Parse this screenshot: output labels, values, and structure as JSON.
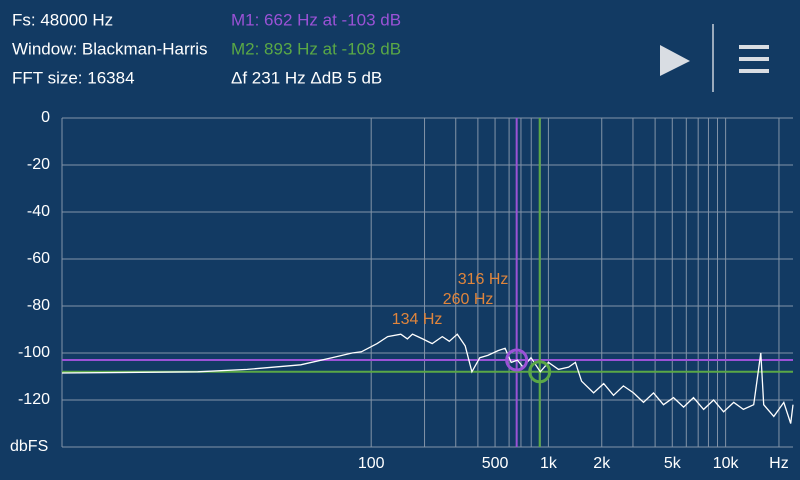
{
  "header": {
    "fs": "Fs: 48000 Hz",
    "window": "Window: Blackman-Harris",
    "fft_size": "FFT size: 16384",
    "m1": "M1: 662 Hz at -103 dB",
    "m2": "M2: 893 Hz at -108 dB",
    "delta": "Δf 231 Hz ΔdB 5 dB"
  },
  "chart_data": {
    "type": "line",
    "log_x": true,
    "ylabel": "dbFS",
    "line_color": "#ffffff",
    "xlim": [
      1.8,
      24000
    ],
    "ylim": [
      -140,
      0
    ],
    "yticks": [
      0,
      -20,
      -40,
      -60,
      -80,
      -100,
      -120
    ],
    "xticks": [
      100,
      500,
      {
        "value": 1000,
        "label": "1k"
      },
      {
        "value": 2000,
        "label": "2k"
      },
      {
        "value": 5000,
        "label": "5k"
      },
      {
        "value": 10000,
        "label": "10k"
      },
      {
        "value": 20000,
        "label": "Hz"
      }
    ],
    "xgrid": [
      100,
      200,
      300,
      400,
      500,
      600,
      700,
      800,
      900,
      1000,
      2000,
      3000,
      4000,
      5000,
      6000,
      7000,
      8000,
      9000,
      10000,
      20000
    ],
    "x": [
      1.8,
      10.5,
      20,
      40,
      60,
      78,
      88,
      108,
      124,
      147,
      160,
      171,
      195,
      221,
      252,
      276,
      306,
      339,
      370,
      410,
      455,
      520,
      570,
      617,
      668,
      720,
      798,
      900,
      1000,
      1140,
      1300,
      1420,
      1540,
      1800,
      2050,
      2330,
      2650,
      3020,
      3440,
      3920,
      4460,
      5080,
      5790,
      6590,
      7510,
      8550,
      9740,
      11100,
      12600,
      14400,
      15800,
      16400,
      18700,
      21300,
      23300,
      24000
    ],
    "values": [
      -108.5,
      -108,
      -107,
      -105,
      -102,
      -100,
      -99.5,
      -96,
      -93,
      -92,
      -94,
      -92,
      -94,
      -96,
      -93,
      -95,
      -92,
      -97,
      -108,
      -102,
      -101,
      -99,
      -98,
      -104,
      -103,
      -106,
      -102,
      -108,
      -104,
      -107,
      -106,
      -104,
      -112,
      -117,
      -113,
      -118,
      -114,
      -117,
      -121,
      -117,
      -122,
      -119,
      -123,
      -119,
      -124,
      -120,
      -125,
      -121,
      -124,
      -122,
      -100,
      -122,
      -127,
      -121,
      -130,
      -122
    ],
    "markers": [
      {
        "freq": 662,
        "db": -103,
        "color": "#9a52d6"
      },
      {
        "freq": 893,
        "db": -108,
        "color": "#5aa846"
      }
    ],
    "peaks": [
      {
        "value": 134,
        "label": "134 Hz"
      },
      {
        "value": 260,
        "label": "260 Hz"
      },
      {
        "value": 316,
        "label": "316 Hz"
      }
    ],
    "peak_color": "#e0853c"
  }
}
